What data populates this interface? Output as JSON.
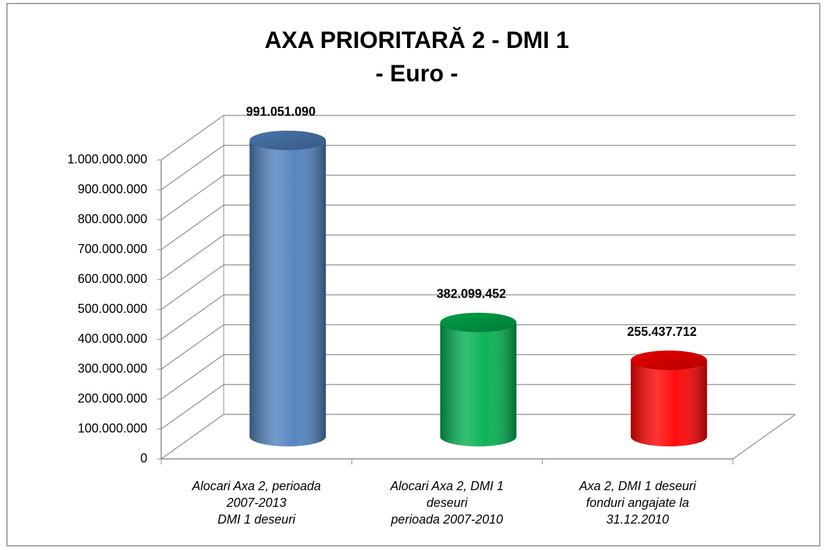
{
  "chart_data": {
    "type": "bar3d",
    "title": "AXA PRIORITARĂ 2 - DMI 1",
    "subtitle": "- Euro -",
    "categories": [
      [
        "Alocari Axa 2, perioada",
        "2007-2013",
        "DMI 1 deseuri"
      ],
      [
        "Alocari Axa 2, DMI 1",
        "deseuri",
        "perioada 2007-2010"
      ],
      [
        "Axa 2, DMI 1 deseuri",
        "fonduri angajate la",
        "31.12.2010"
      ]
    ],
    "values": [
      991051090,
      382099452,
      255437712
    ],
    "value_labels": [
      "991.051.090",
      "382.099.452",
      "255.437.712"
    ],
    "colors": [
      "#4f81bd",
      "#00b050",
      "#ff0000"
    ],
    "ylim": [
      0,
      1000000000
    ],
    "yticks": [
      0,
      {
        "value": 100000000,
        "label": "100.000.000"
      },
      {
        "value": 200000000,
        "label": "200.000.000"
      },
      {
        "value": 300000000,
        "label": "300.000.000"
      },
      {
        "value": 400000000,
        "label": "400.000.000"
      },
      {
        "value": 500000000,
        "label": "500.000.000"
      },
      {
        "value": 600000000,
        "label": "600.000.000"
      },
      {
        "value": 700000000,
        "label": "700.000.000"
      },
      {
        "value": 800000000,
        "label": "800.000.000"
      },
      {
        "value": 900000000,
        "label": "900.000.000"
      },
      {
        "value": 1000000000,
        "label": "1.000.000.000"
      }
    ],
    "grid": true
  }
}
